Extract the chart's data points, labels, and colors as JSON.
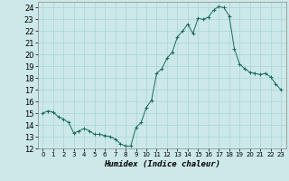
{
  "title": "",
  "xlabel": "Humidex (Indice chaleur)",
  "ylabel": "",
  "background_color": "#cce8e8",
  "line_color": "#1a6b5a",
  "marker_color": "#1a6b5a",
  "grid_color": "#aad4d4",
  "xlim": [
    -0.5,
    23.5
  ],
  "ylim": [
    12,
    24.5
  ],
  "yticks": [
    12,
    13,
    14,
    15,
    16,
    17,
    18,
    19,
    20,
    21,
    22,
    23,
    24
  ],
  "xtick_labels": [
    "0",
    "1",
    "2",
    "3",
    "4",
    "5",
    "6",
    "7",
    "8",
    "9",
    "10",
    "11",
    "12",
    "13",
    "14",
    "15",
    "16",
    "17",
    "18",
    "19",
    "20",
    "21",
    "22",
    "23"
  ],
  "x": [
    0,
    0.5,
    1,
    1.5,
    2,
    2.5,
    3,
    3.5,
    4,
    4.5,
    5,
    5.5,
    6,
    6.5,
    7,
    7.5,
    8,
    8.5,
    9,
    9.5,
    10,
    10.5,
    11,
    11.5,
    12,
    12.5,
    13,
    13.5,
    14,
    14.5,
    15,
    15.5,
    16,
    16.5,
    17,
    17.5,
    18,
    18.5,
    19,
    19.5,
    20,
    20.5,
    21,
    21.5,
    22,
    22.5,
    23
  ],
  "y": [
    15.0,
    15.2,
    15.1,
    14.7,
    14.5,
    14.2,
    13.3,
    13.5,
    13.7,
    13.5,
    13.2,
    13.2,
    13.1,
    13.0,
    12.8,
    12.4,
    12.2,
    12.2,
    13.8,
    14.2,
    15.5,
    16.1,
    18.4,
    18.8,
    19.7,
    20.2,
    21.5,
    22.0,
    22.6,
    21.8,
    23.1,
    23.0,
    23.2,
    23.8,
    24.1,
    24.0,
    23.3,
    20.5,
    19.2,
    18.8,
    18.5,
    18.4,
    18.3,
    18.4,
    18.1,
    17.5,
    17.0
  ],
  "xlabel_fontsize": 6.5,
  "ytick_fontsize": 6,
  "xtick_fontsize": 5
}
